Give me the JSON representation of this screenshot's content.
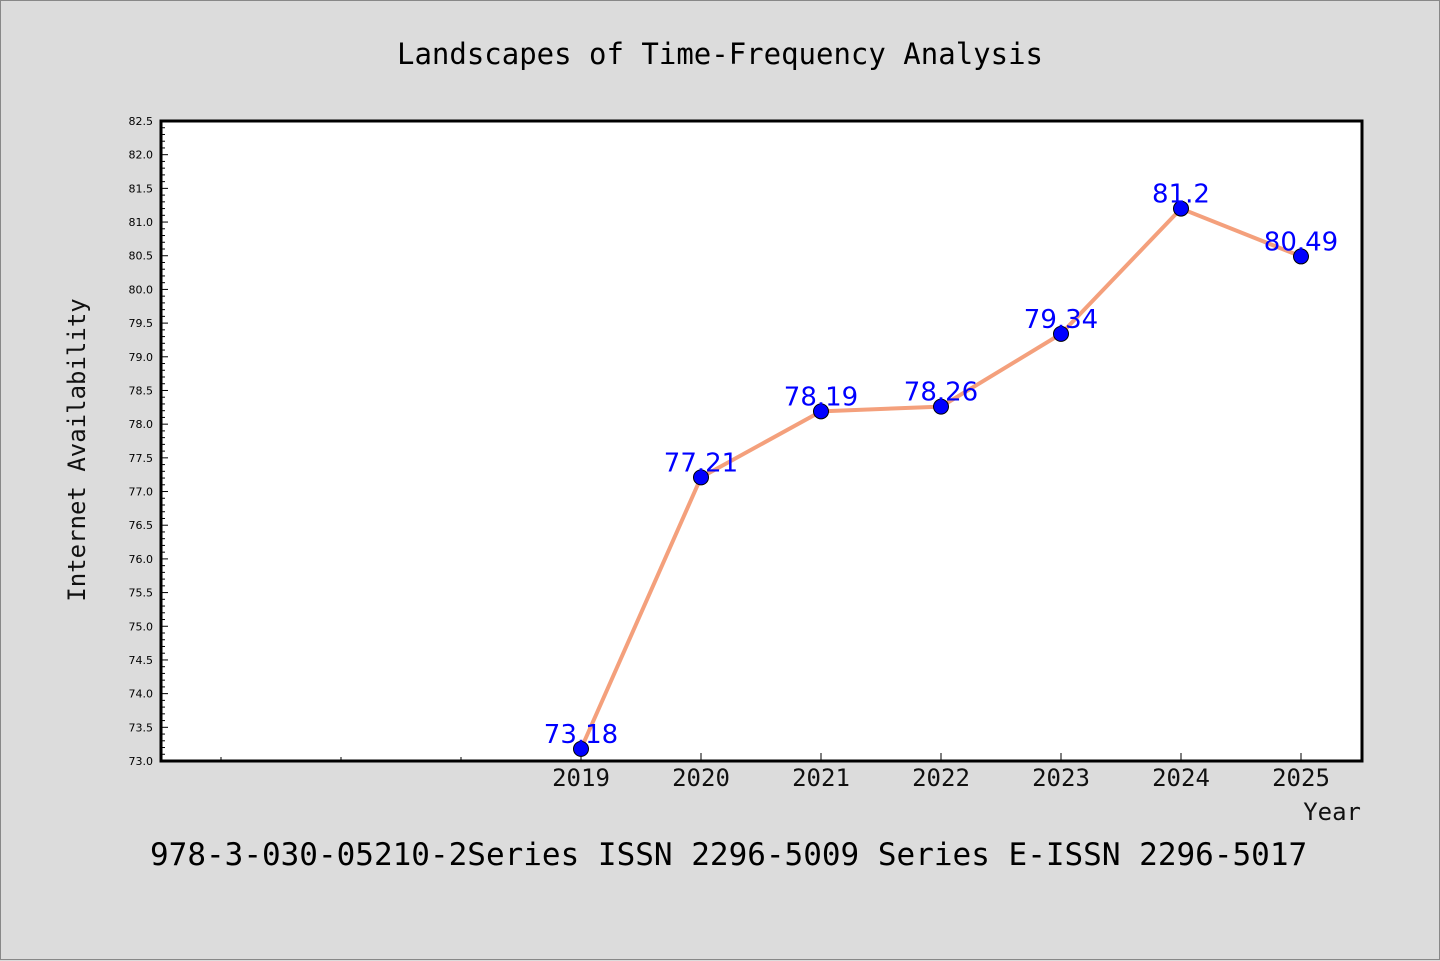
{
  "chart_data": {
    "type": "line",
    "title": "Landscapes of Time-Frequency Analysis",
    "xlabel": "Year",
    "ylabel": "Internet Availability",
    "categories": [
      "2019",
      "2020",
      "2021",
      "2022",
      "2023",
      "2024",
      "2025"
    ],
    "series": [
      {
        "values": [
          73.18,
          77.21,
          78.19,
          78.26,
          79.34,
          81.2,
          80.49
        ],
        "labels": [
          "73.18",
          "77.21",
          "78.19",
          "78.26",
          "79.34",
          "81.2",
          "80.49"
        ],
        "line_color": "#f4a07c",
        "marker_color": "#0000ff"
      }
    ],
    "ylim": [
      73.0,
      82.5
    ],
    "yticks": [
      "73.0",
      "73.5",
      "74.0",
      "74.5",
      "75.0",
      "75.5",
      "76.0",
      "76.5",
      "77.0",
      "77.5",
      "78.0",
      "78.5",
      "79.0",
      "79.5",
      "80.0",
      "80.5",
      "81.0",
      "81.5",
      "82.0",
      "82.5"
    ],
    "grid": false,
    "label_color": "#0000ff"
  },
  "footer": {
    "text": "978-3-030-05210-2Series ISSN 2296-5009 Series E-ISSN 2296-5017"
  }
}
